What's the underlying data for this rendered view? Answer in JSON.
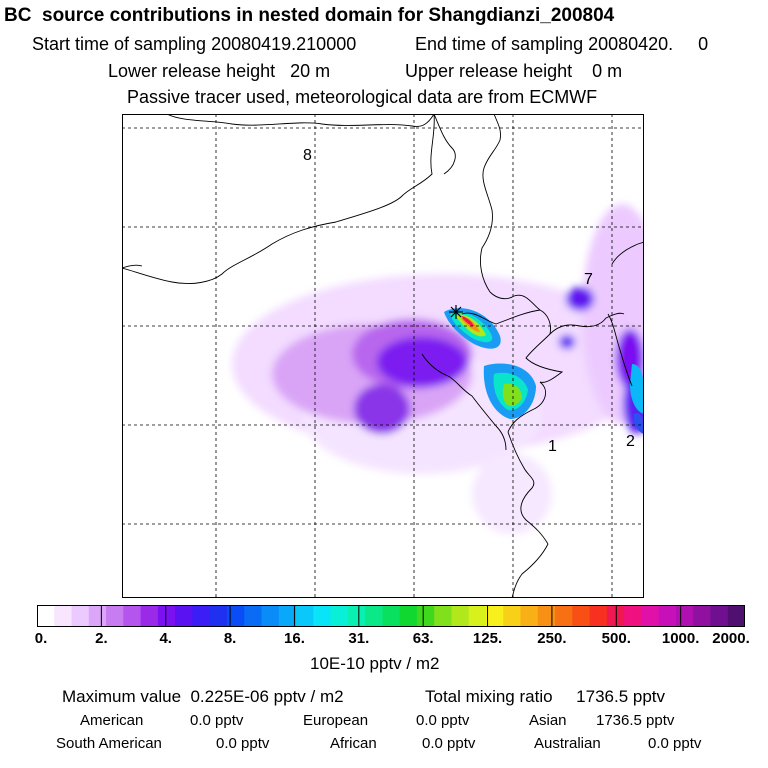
{
  "header": {
    "title": "BC  source contributions in nested domain for Shangdianzi_200804",
    "start": "Start time of sampling 20080419.210000",
    "end": "End time of sampling 20080420.     0",
    "lower": "Lower release height   20 m",
    "upper": "Upper release height    0 m",
    "tracer": "Passive tracer used, meteorological data are from ECMWF"
  },
  "map": {
    "labels": [
      "8",
      "7",
      "1",
      "2"
    ]
  },
  "colorbar": {
    "ticks": [
      "0.",
      "2.",
      "4.",
      "8.",
      "16.",
      "31.",
      "63.",
      "125.",
      "250.",
      "500.",
      "1000.",
      "2000."
    ],
    "units": "10E-10 pptv / m2",
    "colors": [
      "#ffffff",
      "#f8e6ff",
      "#eccaff",
      "#dca6f8",
      "#c87cf2",
      "#b455ee",
      "#9a2ae8",
      "#7b10f0",
      "#5a12f2",
      "#3a1ef5",
      "#2030f0",
      "#0a4cf5",
      "#0a6cf5",
      "#0a8cf8",
      "#0aa8fa",
      "#0ac8fa",
      "#0ae4f8",
      "#0af0d8",
      "#0af0b0",
      "#0ae888",
      "#0ae060",
      "#10d830",
      "#40d81c",
      "#80e01c",
      "#b0e81c",
      "#d8f01c",
      "#f8f01c",
      "#f8d018",
      "#f8b016",
      "#f89014",
      "#f87014",
      "#f85014",
      "#f83020",
      "#f01850",
      "#f01080",
      "#e010a8",
      "#c810b8",
      "#b010b0",
      "#9010a0",
      "#701090",
      "#501070"
    ]
  },
  "stats": {
    "max": "Maximum value  0.225E-06 pptv / m2",
    "total": "Total mixing ratio     1736.5 pptv",
    "rows": [
      [
        "American",
        "0.0 pptv",
        "European",
        "0.0 pptv",
        "Asian",
        "1736.5 pptv"
      ],
      [
        "South American",
        "0.0 pptv",
        "African",
        "0.0 pptv",
        "Australian",
        "0.0 pptv"
      ]
    ]
  }
}
